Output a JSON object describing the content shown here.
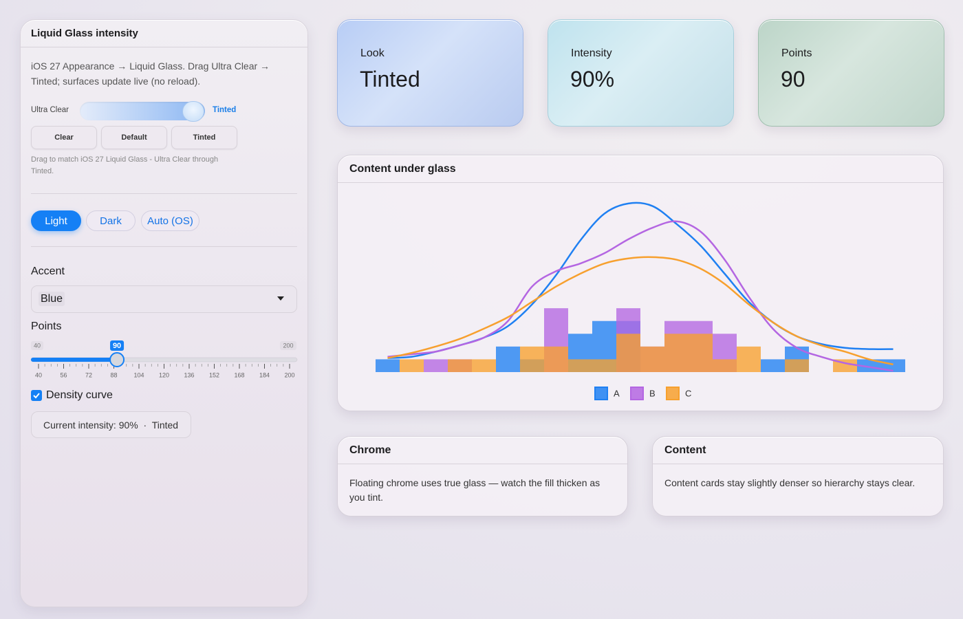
{
  "sidebar": {
    "title": "Liquid Glass intensity",
    "description": "iOS 27 Appearance → Liquid Glass. Drag Ultra Clear → Tinted; surfaces update live (no reload).",
    "intensity_slider": {
      "min_label": "Ultra Clear",
      "max_label": "Tinted",
      "range": [
        0,
        100
      ],
      "value": 90
    },
    "presets": [
      "Clear",
      "Default",
      "Tinted"
    ],
    "hint": "Drag to match iOS 27 Liquid Glass - Ultra Clear through Tinted.",
    "themes": [
      "Light",
      "Dark",
      "Auto (OS)"
    ],
    "accent_label": "Accent",
    "accent_value": "Blue",
    "points_label": "Points",
    "points_slider": {
      "min": 40,
      "max": 200,
      "value": 90,
      "ticks": [
        40,
        56,
        72,
        88,
        104,
        120,
        136,
        152,
        168,
        184,
        200
      ]
    },
    "density_label": "Density curve",
    "density_checked": true,
    "status": "Current intensity: 90%  ·  Tinted"
  },
  "cards": [
    {
      "label": "Look",
      "value": "Tinted"
    },
    {
      "label": "Intensity",
      "value": "90%"
    },
    {
      "label": "Points",
      "value": "90"
    }
  ],
  "chart_data": {
    "type": "histogram",
    "title": "Content under glass",
    "bins": [
      0,
      1,
      2,
      3,
      4,
      5,
      6,
      7,
      8,
      9,
      10,
      11,
      12,
      13,
      14,
      15,
      16,
      17,
      18,
      19,
      20,
      21,
      22
    ],
    "ylim": [
      0,
      14
    ],
    "density_x": [
      0.5,
      1.5,
      2.5,
      3.5,
      4.5,
      5.5,
      6.5,
      7.5,
      8.5,
      9.5,
      10.5,
      11.5,
      12.5,
      13.5,
      14.5,
      15.5,
      16.5,
      17.5,
      18.5,
      19.5,
      20.5,
      21.5
    ],
    "legend": "bottom",
    "series": [
      {
        "name": "A",
        "color": "#1f80f2",
        "values": [
          1,
          0,
          0,
          0,
          0,
          2,
          1,
          0,
          3,
          4,
          4,
          0,
          0,
          0,
          0,
          0,
          1,
          2,
          0,
          0,
          1,
          1
        ],
        "density": [
          1.1,
          1.2,
          1.6,
          2.1,
          2.7,
          3.6,
          5.3,
          7.6,
          10.3,
          12.4,
          13.2,
          13,
          11.6,
          9.9,
          7.7,
          5.5,
          3.9,
          2.8,
          2.2,
          1.9,
          1.8,
          1.8
        ]
      },
      {
        "name": "B",
        "color": "#b466e2",
        "values": [
          0,
          0,
          1,
          1,
          0,
          0,
          0,
          5,
          0,
          0,
          5,
          2,
          4,
          4,
          3,
          0,
          0,
          0,
          0,
          0,
          0,
          0
        ],
        "density": [
          1.2,
          1.4,
          1.6,
          2.1,
          2.7,
          4,
          6.7,
          7.9,
          8.5,
          9.3,
          10.4,
          11.3,
          11.8,
          11,
          8.8,
          5.9,
          3.4,
          1.9,
          1.2,
          0.7,
          0.4,
          0.1
        ]
      },
      {
        "name": "C",
        "color": "#f7a02e",
        "values": [
          0,
          1,
          0,
          1,
          1,
          0,
          2,
          2,
          1,
          1,
          3,
          2,
          3,
          3,
          1,
          2,
          0,
          1,
          0,
          1,
          0,
          0
        ],
        "density": [
          1.1,
          1.5,
          2,
          2.6,
          3.4,
          4.3,
          5.5,
          6.7,
          7.7,
          8.5,
          8.9,
          9,
          8.8,
          8.1,
          6.9,
          5.3,
          3.9,
          2.8,
          2.1,
          1.6,
          1,
          0.6
        ]
      }
    ]
  },
  "notes": [
    {
      "title": "Chrome",
      "text": "Floating chrome uses true glass — watch the fill thicken as you tint."
    },
    {
      "title": "Content",
      "text": "Content cards stay slightly denser so hierarchy stays clear."
    }
  ]
}
